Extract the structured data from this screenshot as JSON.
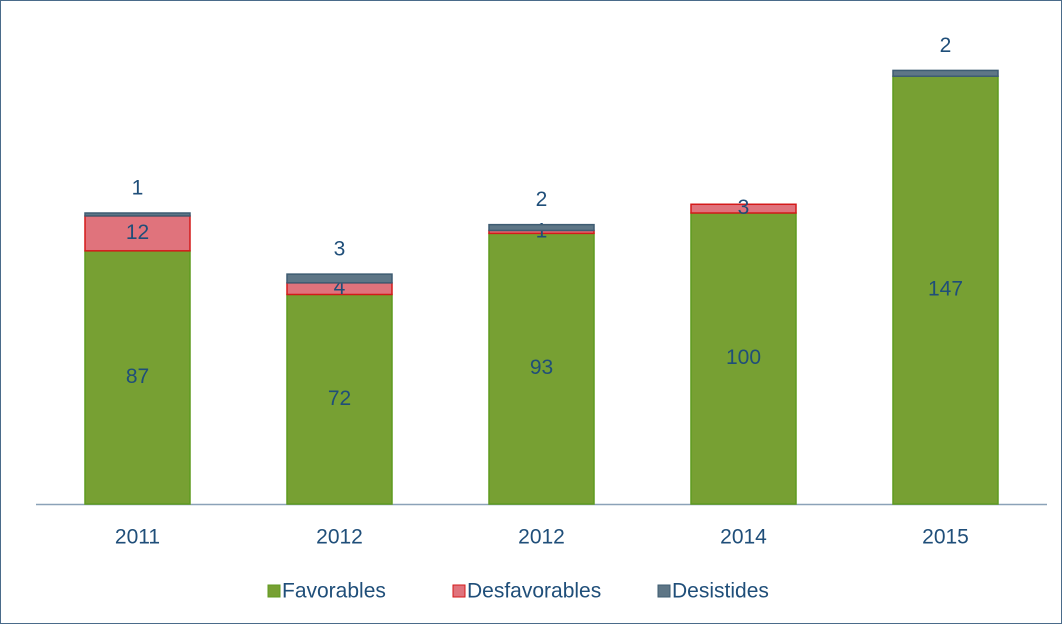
{
  "chart_data": {
    "type": "stacked_bar",
    "categories": [
      "2011",
      "2012",
      "2012",
      "2014",
      "2015"
    ],
    "series": [
      {
        "name": "Favorables",
        "color": "#77a033",
        "values": [
          87,
          72,
          93,
          100,
          147
        ]
      },
      {
        "name": "Desfavorables",
        "color": "#e0737c",
        "values": [
          12,
          4,
          1,
          3,
          null
        ]
      },
      {
        "name": "Desistides",
        "color": "#5e7686",
        "values": [
          1,
          3,
          2,
          null,
          2
        ]
      }
    ]
  }
}
